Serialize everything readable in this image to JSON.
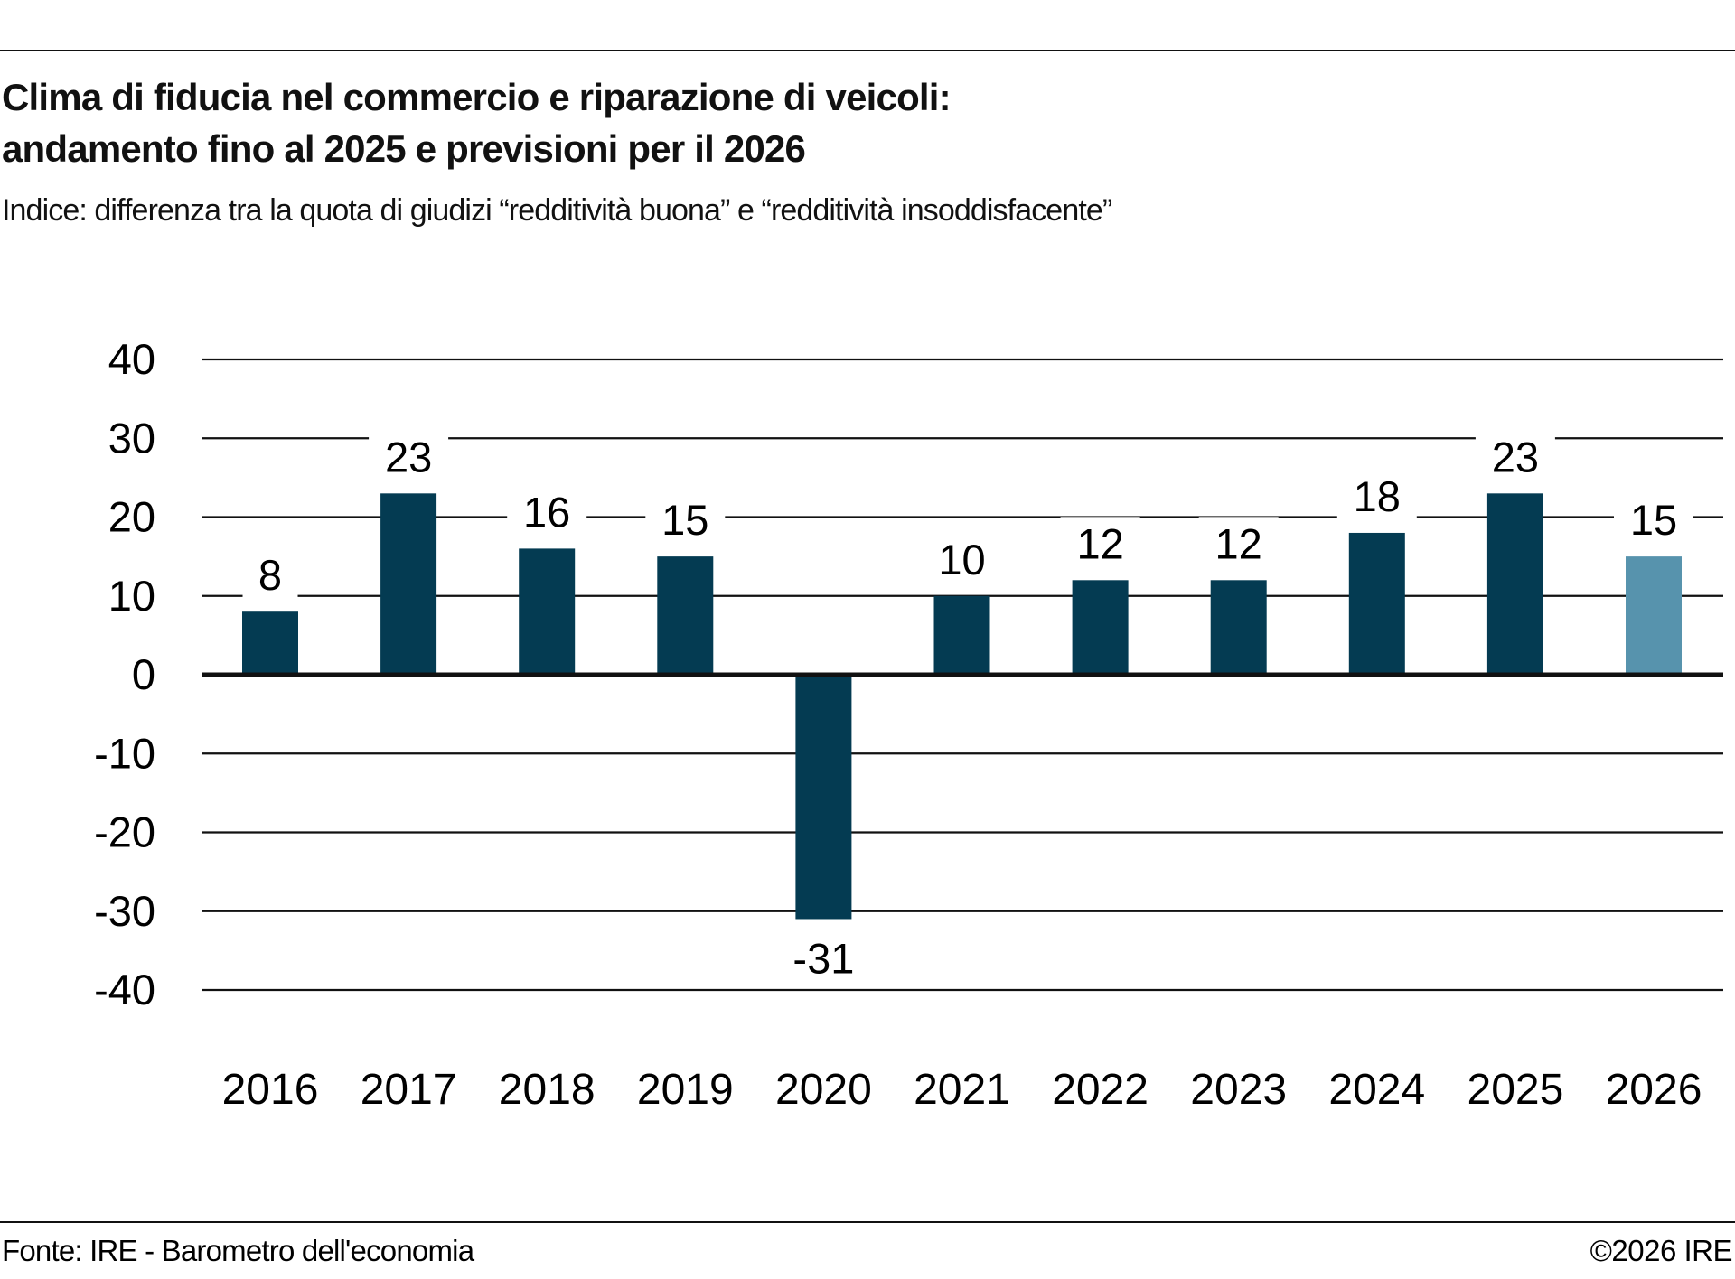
{
  "header": {
    "title_line1": "Clima di fiducia nel commercio e riparazione di veicoli:",
    "title_line2": "andamento fino al 2025 e previsioni per il 2026",
    "subtitle": "Indice: differenza tra la quota di giudizi “redditività buona” e “redditività insoddisfacente”"
  },
  "footer": {
    "source": "Fonte: IRE - Barometro dell'economia",
    "copyright": "©2026 IRE"
  },
  "colors": {
    "actual": "#043B52",
    "forecast": "#5793AD",
    "gridline": "#111111"
  },
  "chart_data": {
    "type": "bar",
    "title": "Clima di fiducia nel commercio e riparazione di veicoli: andamento fino al 2025 e previsioni per il 2026",
    "subtitle": "Indice: differenza tra la quota di giudizi “redditività buona” e “redditività insoddisfacente”",
    "xlabel": "",
    "ylabel": "",
    "categories": [
      "2016",
      "2017",
      "2018",
      "2019",
      "2020",
      "2021",
      "2022",
      "2023",
      "2024",
      "2025",
      "2026"
    ],
    "values": [
      8,
      23,
      16,
      15,
      -31,
      10,
      12,
      12,
      18,
      23,
      15
    ],
    "data_labels": [
      "8",
      "23",
      "16",
      "15",
      "-31",
      "10",
      "12",
      "12",
      "18",
      "23",
      "15"
    ],
    "forecast": [
      false,
      false,
      false,
      false,
      false,
      false,
      false,
      false,
      false,
      false,
      true
    ],
    "ylim": [
      -40,
      40
    ],
    "yticks": [
      40,
      30,
      20,
      10,
      0,
      -10,
      -20,
      -30,
      -40
    ],
    "ytick_labels": [
      "40",
      "30",
      "20",
      "10",
      "0",
      "-10",
      "-20",
      "-30",
      "-40"
    ],
    "grid": true,
    "legend": "none"
  }
}
